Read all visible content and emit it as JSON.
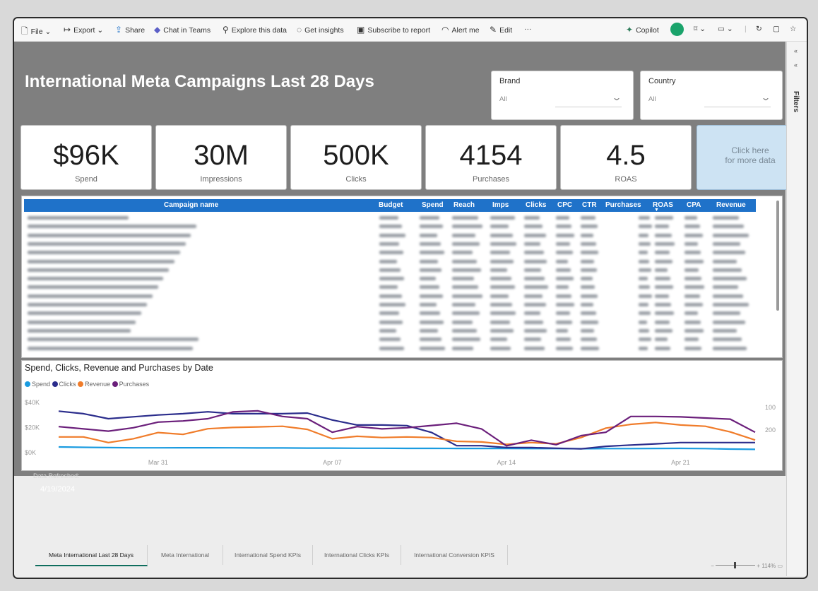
{
  "toolbar": {
    "file": "File",
    "export": "Export",
    "share": "Share",
    "chat_in_teams": "Chat in Teams",
    "explore": "Explore this data",
    "insights": "Get insights",
    "subscribe": "Subscribe to report",
    "alert": "Alert me",
    "edit": "Edit",
    "more": "···",
    "copilot": "Copilot"
  },
  "filters_pane": {
    "label": "Filters"
  },
  "page": {
    "title": "International Meta Campaigns Last 28 Days"
  },
  "slicers": {
    "brand": {
      "label": "Brand",
      "value": "All"
    },
    "country": {
      "label": "Country",
      "value": "All"
    }
  },
  "kpis": [
    {
      "value": "$96K",
      "label": "Spend"
    },
    {
      "value": "30M",
      "label": "Impressions"
    },
    {
      "value": "500K",
      "label": "Clicks"
    },
    {
      "value": "4154",
      "label": "Purchases"
    },
    {
      "value": "4.5",
      "label": "ROAS"
    }
  ],
  "more_data_button": {
    "line1": "Click here",
    "line2": "for more data"
  },
  "table": {
    "columns": [
      "Campaign name",
      "Budget",
      "Spend",
      "Reach",
      "Imps",
      "Clicks",
      "CPC",
      "CTR",
      "Purchases",
      "ROAS",
      "CPA",
      "Revenue"
    ],
    "sorted_by": "ROAS"
  },
  "chart": {
    "title": "Spend, Clicks, Revenue and Purchases by Date",
    "legend": [
      "Spend",
      "Clicks",
      "Revenue",
      "Purchases"
    ],
    "colors": {
      "spend": "#1a9be0",
      "clicks": "#2b2d8c",
      "revenue": "#f07c2a",
      "purchases": "#6b1f7b"
    },
    "y_left_ticks": [
      "$40K",
      "$20K",
      "$0K"
    ],
    "y_right_ticks": [
      "200",
      "100"
    ],
    "x_ticks": [
      "Mar 31",
      "Apr 07",
      "Apr 14",
      "Apr 21"
    ]
  },
  "chart_data": {
    "type": "line",
    "title": "Spend, Clicks, Revenue and Purchases by Date",
    "x": [
      "Mar 27",
      "Mar 28",
      "Mar 29",
      "Mar 30",
      "Mar 31",
      "Apr 01",
      "Apr 02",
      "Apr 03",
      "Apr 04",
      "Apr 05",
      "Apr 06",
      "Apr 07",
      "Apr 08",
      "Apr 09",
      "Apr 10",
      "Apr 11",
      "Apr 12",
      "Apr 13",
      "Apr 14",
      "Apr 15",
      "Apr 16",
      "Apr 17",
      "Apr 18",
      "Apr 19",
      "Apr 20",
      "Apr 21",
      "Apr 22",
      "Apr 23",
      "Apr 24"
    ],
    "ylim_left": [
      0,
      45000
    ],
    "ylim_right": [
      0,
      250
    ],
    "y_right_ticks": [
      100,
      200
    ],
    "series": [
      {
        "name": "Spend",
        "axis": "left",
        "values": [
          4500,
          4200,
          4000,
          3800,
          3800,
          3900,
          3900,
          3800,
          3700,
          3700,
          3600,
          3600,
          3500,
          3500,
          3400,
          3400,
          3300,
          3300,
          3300,
          3200,
          3200,
          3100,
          3200,
          3200,
          3300,
          3400,
          3200,
          2800,
          2600
        ]
      },
      {
        "name": "Clicks",
        "axis": "left",
        "values": [
          33000,
          31000,
          27000,
          28500,
          30000,
          31000,
          32500,
          31000,
          31000,
          31000,
          31500,
          26000,
          22000,
          22000,
          21500,
          16000,
          5500,
          5500,
          4000,
          4000,
          3500,
          3000,
          5000,
          6000,
          7000,
          8000,
          8000,
          8000,
          8000
        ]
      },
      {
        "name": "Revenue",
        "axis": "left",
        "values": [
          12500,
          12500,
          8000,
          11000,
          16000,
          14500,
          19000,
          20000,
          20500,
          21000,
          18500,
          11000,
          13000,
          12000,
          12500,
          12000,
          9000,
          8500,
          6500,
          8000,
          7000,
          12000,
          19500,
          22500,
          24000,
          22000,
          21000,
          16500,
          10000
        ]
      },
      {
        "name": "Purchases",
        "axis": "right",
        "values": [
          115,
          105,
          95,
          110,
          135,
          140,
          150,
          180,
          185,
          160,
          150,
          90,
          115,
          105,
          110,
          120,
          130,
          105,
          30,
          55,
          35,
          75,
          90,
          160,
          160,
          158,
          153,
          148,
          90
        ]
      }
    ]
  },
  "refresh": {
    "label": "Data Refreshed:",
    "date": "4/19/2024"
  },
  "tabs": [
    "Meta International Last 28 Days",
    "Meta International",
    "International Spend KPIs",
    "International Clicks KPIs",
    "International Conversion KPIS"
  ],
  "zoom": {
    "label": "114%"
  }
}
